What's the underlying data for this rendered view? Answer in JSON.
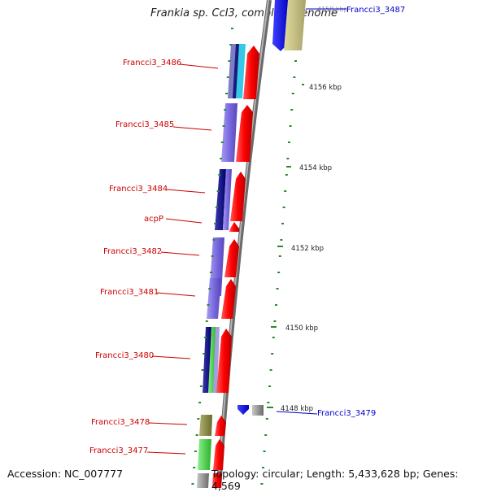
{
  "title": "Frankia sp. CcI3, complete genome",
  "footer": {
    "accession": "Accession: NC_007777",
    "topology": "Topology: circular; Length: 5,433,628 bp; Genes: 4,569"
  },
  "ruler": {
    "labels": [
      "4158 kbp",
      "4156 kbp",
      "4154 kbp",
      "4152 kbp",
      "4150 kbp",
      "4148 kbp"
    ]
  },
  "genes": {
    "left": [
      "Francci3_3486",
      "Francci3_3485",
      "Francci3_3484",
      "acpP",
      "Francci3_3482",
      "Francci3_3481",
      "Francci3_3480",
      "Francci3_3478",
      "Francci3_3477"
    ],
    "right": [
      "Francci3_3487",
      "Francci3_3479"
    ]
  },
  "colors": {
    "backbone": "#8a8a8a",
    "forward_gene": "#ff0000",
    "tick": "#2a8a2a",
    "label_left": "#cc0000",
    "label_right": "#0000cc"
  }
}
